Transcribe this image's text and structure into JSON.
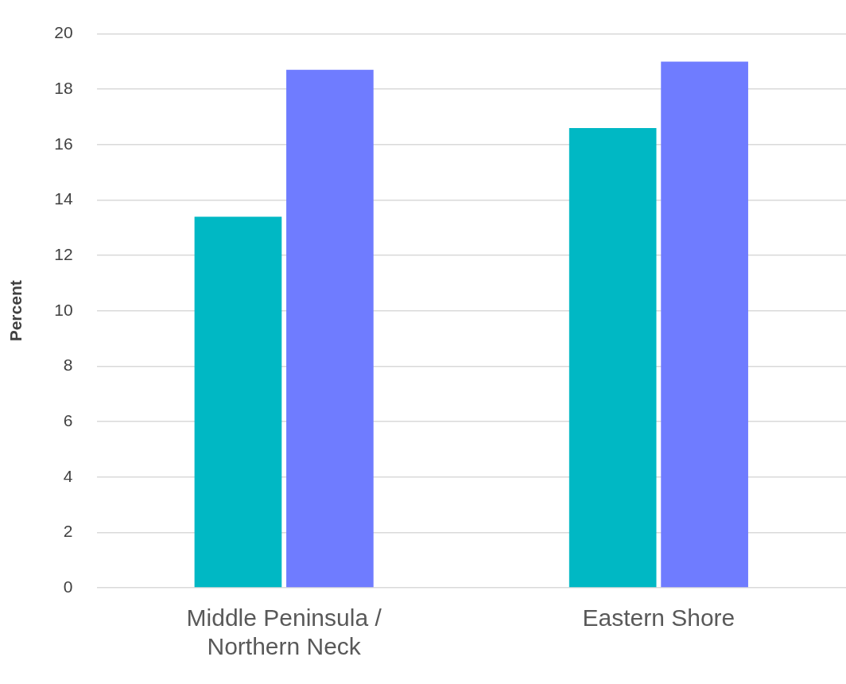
{
  "chart_data": {
    "type": "bar",
    "ylabel": "Percent",
    "categories": [
      "Middle Peninsula / Northern Neck",
      "Eastern Shore"
    ],
    "series": [
      {
        "color": "#00b8c4",
        "values": [
          13.4,
          16.6
        ]
      },
      {
        "color": "#6f7cff",
        "values": [
          18.7,
          19.0
        ]
      }
    ],
    "ylim": [
      0,
      20
    ],
    "yticks": [
      0,
      2,
      4,
      6,
      8,
      10,
      12,
      14,
      16,
      18,
      20
    ],
    "grid": "y",
    "legend": false
  }
}
